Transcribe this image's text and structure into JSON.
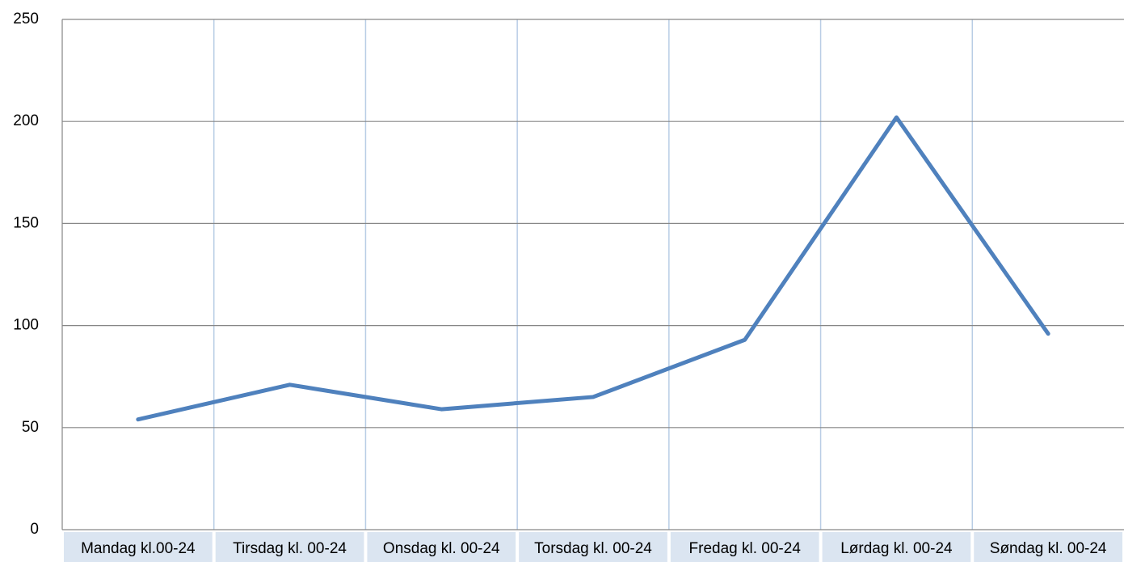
{
  "chart_data": {
    "type": "line",
    "categories": [
      "Mandag kl.00-24",
      "Tirsdag kl. 00-24",
      "Onsdag kl. 00-24",
      "Torsdag kl. 00-24",
      "Fredag kl. 00-24",
      "Lørdag kl. 00-24",
      "Søndag kl. 00-24"
    ],
    "series": [
      {
        "color": "#4f81bd",
        "values": [
          54,
          71,
          59,
          65,
          93,
          202,
          96
        ]
      }
    ],
    "ylim": [
      0,
      250
    ],
    "yticks": [
      0,
      50,
      100,
      150,
      200,
      250
    ],
    "grid": true
  }
}
